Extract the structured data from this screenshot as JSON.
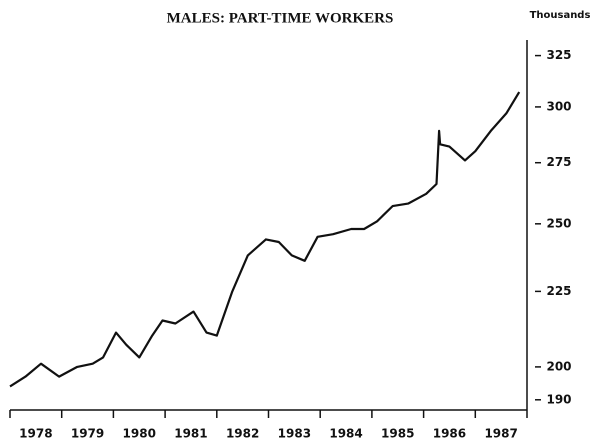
{
  "chart_data": {
    "type": "line",
    "title": "MALES: PART-TIME WORKERS",
    "y_unit_label": "Thousands",
    "log_scale": true,
    "color": "#111111",
    "series": [
      {
        "name": null,
        "color": "#111111",
        "x": [
          1978.0,
          1978.3,
          1978.6,
          1978.95,
          1979.3,
          1979.6,
          1979.8,
          1980.05,
          1980.25,
          1980.5,
          1980.75,
          1980.95,
          1981.2,
          1981.55,
          1981.8,
          1982.0,
          1982.3,
          1982.6,
          1982.95,
          1983.2,
          1983.45,
          1983.7,
          1983.95,
          1984.25,
          1984.6,
          1984.85,
          1985.1,
          1985.4,
          1985.7,
          1986.05,
          1986.25,
          1986.3,
          1986.32,
          1986.5,
          1986.8,
          1987.0,
          1987.3,
          1987.6,
          1987.85
        ],
        "values": [
          194,
          197,
          201,
          197,
          200,
          201,
          203,
          211,
          207,
          203,
          210,
          215,
          214,
          218,
          211,
          210,
          225,
          238,
          244,
          243,
          238,
          236,
          245,
          246,
          248,
          248,
          251,
          257,
          258,
          262,
          266,
          289,
          283,
          282,
          276,
          280,
          289,
          297,
          307
        ]
      }
    ],
    "xlim": [
      1978,
      1988
    ],
    "xticks": [
      {
        "value": 1978.5,
        "label": "1978"
      },
      {
        "value": 1979.5,
        "label": "1979"
      },
      {
        "value": 1980.5,
        "label": "1980"
      },
      {
        "value": 1981.5,
        "label": "1981"
      },
      {
        "value": 1982.5,
        "label": "1982"
      },
      {
        "value": 1983.5,
        "label": "1983"
      },
      {
        "value": 1984.5,
        "label": "1984"
      },
      {
        "value": 1985.5,
        "label": "1985"
      },
      {
        "value": 1986.5,
        "label": "1986"
      },
      {
        "value": 1987.5,
        "label": "1987"
      }
    ],
    "xtick_marks": [
      1978,
      1979,
      1980,
      1981,
      1982,
      1983,
      1984,
      1985,
      1986,
      1987,
      1988
    ],
    "ylim": [
      187,
      333
    ],
    "yticks": [
      190,
      200,
      225,
      250,
      275,
      300,
      325
    ],
    "y_axis_side": "right"
  }
}
